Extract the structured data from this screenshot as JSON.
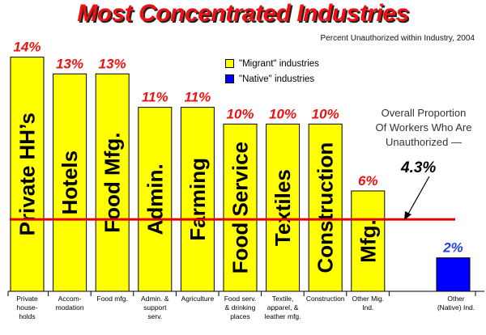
{
  "title": "Most Concentrated Industries",
  "subtitle": "Percent Unauthorized within Industry, 2004",
  "legend": [
    {
      "label": "\"Migrant\" industries",
      "color": "#ffff00"
    },
    {
      "label": "\"Native\" industries",
      "color": "#0000ff"
    }
  ],
  "annotation": {
    "lines": [
      "Overall Proportion",
      "Of Workers Who Are",
      "Unauthorized —"
    ],
    "value": "4.3%"
  },
  "colors": {
    "migrant_bar": "#ffff00",
    "native_bar": "#0000ff",
    "value_label_migrant": "#ee1111",
    "value_label_native": "#1f3fe0",
    "reference_line": "#e00000"
  },
  "chart_data": {
    "type": "bar",
    "title": "Most Concentrated Industries",
    "subtitle": "Percent Unauthorized within Industry, 2004",
    "ylim": [
      0,
      14.9
    ],
    "reference_line": 4.3,
    "bars": [
      {
        "inside_label": "Private HH’s",
        "value": 14,
        "value_label": "14%",
        "category": [
          "Private",
          "house-",
          "holds"
        ],
        "group": "migrant"
      },
      {
        "inside_label": "Hotels",
        "value": 13,
        "value_label": "13%",
        "category": [
          "Accom-",
          "modation"
        ],
        "group": "migrant"
      },
      {
        "inside_label": "Food Mfg.",
        "value": 13,
        "value_label": "13%",
        "category": [
          "Food mfg."
        ],
        "group": "migrant"
      },
      {
        "inside_label": "Admin.",
        "value": 11,
        "value_label": "11%",
        "category": [
          "Admin. &",
          "support",
          "serv."
        ],
        "group": "migrant"
      },
      {
        "inside_label": "Farming",
        "value": 11,
        "value_label": "11%",
        "category": [
          "Agriculture"
        ],
        "group": "migrant"
      },
      {
        "inside_label": "Food Service",
        "value": 10,
        "value_label": "10%",
        "category": [
          "Food serv.",
          "& drinking",
          "places"
        ],
        "group": "migrant"
      },
      {
        "inside_label": "Textiles",
        "value": 10,
        "value_label": "10%",
        "category": [
          "Textile,",
          "apparel, &",
          "leather mfg."
        ],
        "group": "migrant"
      },
      {
        "inside_label": "Construction",
        "value": 10,
        "value_label": "10%",
        "category": [
          "Construction"
        ],
        "group": "migrant"
      },
      {
        "inside_label": "Mfg.",
        "value": 6,
        "value_label": "6%",
        "category": [
          "Other Mig.",
          "Ind."
        ],
        "group": "migrant"
      },
      {
        "inside_label": "",
        "value": 2,
        "value_label": "2%",
        "category": [
          "Other",
          "(Native) Ind."
        ],
        "group": "native"
      }
    ]
  }
}
